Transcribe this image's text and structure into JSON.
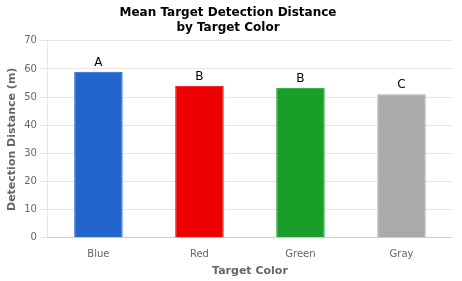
{
  "chart_data": {
    "type": "bar",
    "title": "Mean Target Detection Distance",
    "subtitle": "by Target Color",
    "x_label": "Target Color",
    "y_label": "Detection Distance (m)",
    "categories": [
      "Blue",
      "Red",
      "Green",
      "Gray"
    ],
    "values": [
      59.0,
      54.0,
      53.3,
      51.0
    ],
    "colors": [
      "#2266cc",
      "#ee0000",
      "#1a9e2a",
      "#aaaaaa"
    ],
    "annotations": [
      "A",
      "B",
      "B",
      "C"
    ],
    "ylim": [
      0,
      70
    ],
    "yticks": [
      0,
      10,
      20,
      30,
      40,
      50,
      60,
      70
    ],
    "grid": true
  }
}
